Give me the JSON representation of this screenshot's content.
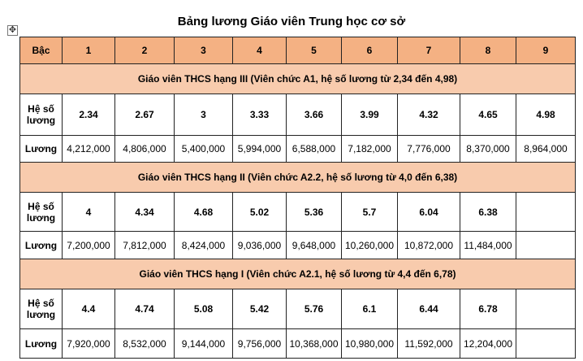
{
  "title": "Bảng lương Giáo viên Trung học cơ sở",
  "header": {
    "label": "Bậc",
    "columns": [
      "1",
      "2",
      "3",
      "4",
      "5",
      "6",
      "7",
      "8",
      "9"
    ]
  },
  "groups": [
    {
      "heading": "Giáo viên THCS hạng III (Viên chức A1, hệ số lương từ 2,34 đến 4,98)",
      "coef_label": "Hệ số lương",
      "coef_values": [
        "2.34",
        "2.67",
        "3",
        "3.33",
        "3.66",
        "3.99",
        "4.32",
        "4.65",
        "4.98"
      ],
      "salary_label": "Lương",
      "salary_values": [
        "4,212,000",
        "4,806,000",
        "5,400,000",
        "5,994,000",
        "6,588,000",
        "7,182,000",
        "7,776,000",
        "8,370,000",
        "8,964,000"
      ]
    },
    {
      "heading": "Giáo viên THCS hạng II (Viên chức A2.2, hệ số lương từ 4,0 đến 6,38)",
      "coef_label": "Hệ số lương",
      "coef_values": [
        "4",
        "4.34",
        "4.68",
        "5.02",
        "5.36",
        "5.7",
        "6.04",
        "6.38"
      ],
      "salary_label": "Lương",
      "salary_values": [
        "7,200,000",
        "7,812,000",
        "8,424,000",
        "9,036,000",
        "9,648,000",
        "10,260,000",
        "10,872,000",
        "11,484,000"
      ]
    },
    {
      "heading": "Giáo viên THCS hạng I (Viên chức A2.1, hệ số lương từ 4,4 đến 6,78)",
      "coef_label": "Hệ số lương",
      "coef_values": [
        "4.4",
        "4.74",
        "5.08",
        "5.42",
        "5.76",
        "6.1",
        "6.44",
        "6.78"
      ],
      "salary_label": "Lương",
      "salary_values": [
        "7,920,000",
        "8,532,000",
        "9,144,000",
        "9,756,000",
        "10,368,000",
        "10,980,000",
        "11,592,000",
        "12,204,000"
      ]
    }
  ]
}
